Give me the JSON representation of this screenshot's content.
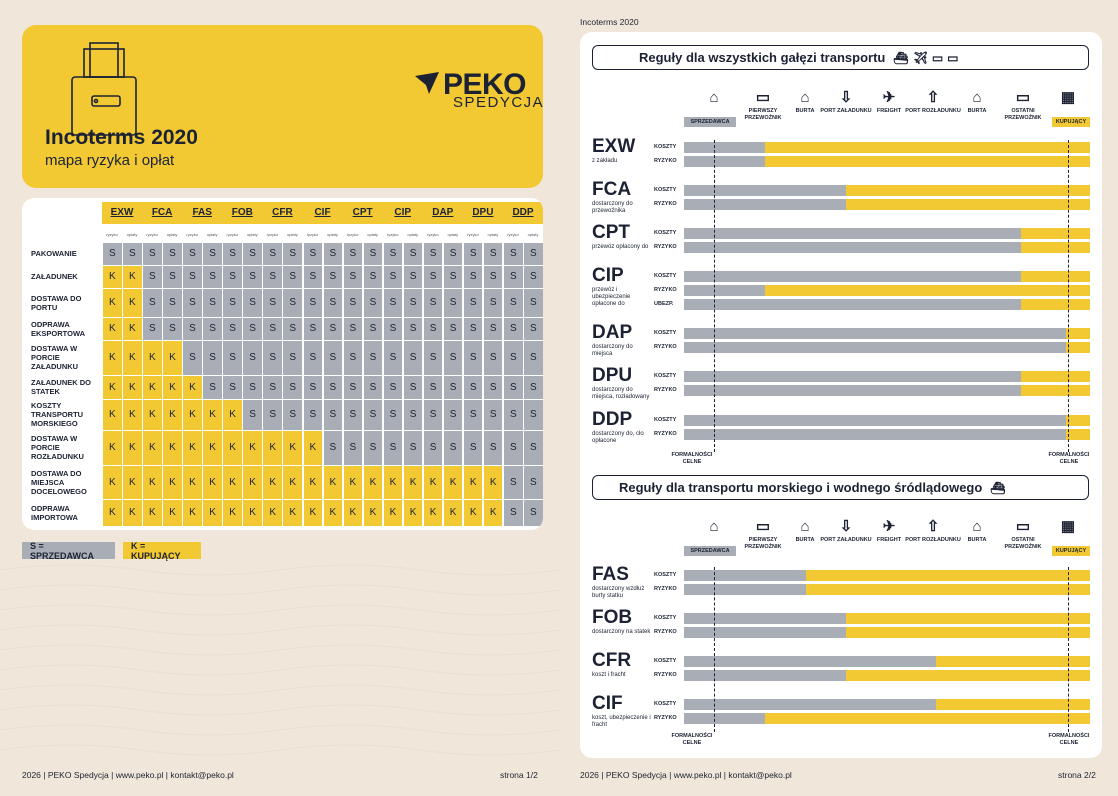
{
  "page1": {
    "title": "Incoterms 2020",
    "subtitle": "mapa ryzyka i opłat",
    "logo_main": "PEKO",
    "logo_sub": "SPEDYCJA",
    "terms": [
      "EXW",
      "FCA",
      "FAS",
      "FOB",
      "CFR",
      "CIF",
      "CPT",
      "CIP",
      "DAP",
      "DPU",
      "DDP"
    ],
    "sublabels": [
      "ryzyko",
      "opłaty"
    ],
    "rows": [
      {
        "label": "PAKOWANIE",
        "cells": "SSSSSSSSSSSSSSSSSSSSSS"
      },
      {
        "label": "ZAŁADUNEK",
        "cells": "KKSSSSSSSSSSSSSSSSSSSS"
      },
      {
        "label": "DOSTAWA DO PORTU",
        "cells": "KKSSSSSSSSSSSSSSSSSSSS"
      },
      {
        "label": "ODPRAWA EKSPORTOWA",
        "cells": "KKSSSSSSSSSSSSSSSSSSSS"
      },
      {
        "label": "DOSTAWA W PORCIE ZAŁADUNKU",
        "cells": "KKKKSSSSSSSSSSSSSSSSSS"
      },
      {
        "label": "ZAŁADUNEK DO STATEK",
        "cells": "KKKKKSSSSSSSSSSSSSSSSS"
      },
      {
        "label": "KOSZTY TRANSPORTU MORSKIEGO",
        "cells": "KKKKKKKSSSSSSSSSSSSSSS"
      },
      {
        "label": "DOSTAWA W PORCIE ROZŁADUNKU",
        "cells": "KKKKKKKKKKKSSSSSSSSSSS"
      },
      {
        "label": "DOSTAWA DO MIEJSCA DOCELOWEGO",
        "cells": "KKKKKKKKKKKKKKKKKKKKSS"
      },
      {
        "label": "ODPRAWA IMPORTOWA",
        "cells": "KKKKKKKKKKKKKKKKKKKKSS"
      }
    ],
    "legend_s": "S = SPRZEDAWCA",
    "legend_k": "K = KUPUJĄCY",
    "footer": "2026 | PEKO Spedycja | www.peko.pl | kontakt@peko.pl",
    "page": "strona 1/2"
  },
  "page2": {
    "top_label": "Incoterms 2020",
    "section1": "Reguły dla wszystkich gałęzi transportu",
    "section2": "Reguły dla transportu morskiego i wodnego śródlądowego",
    "seller_tag": "SPRZEDAWCA",
    "buyer_tag": "KUPUJĄCY",
    "stages": [
      {
        "label": "",
        "icon": "factory-icon"
      },
      {
        "label": "PIERWSZY PRZEWOŹNIK",
        "icon": "truck-icon"
      },
      {
        "label": "BURTA",
        "icon": "warehouse-icon"
      },
      {
        "label": "PORT ZAŁADUNKU",
        "icon": "loading-icon"
      },
      {
        "label": "FREIGHT",
        "icon": "plane-icon"
      },
      {
        "label": "PORT ROZŁADUNKU",
        "icon": "unloading-icon"
      },
      {
        "label": "BURTA",
        "icon": "warehouse-icon"
      },
      {
        "label": "OSTATNI PRZEWOŹNIK",
        "icon": "truck-icon"
      },
      {
        "label": "",
        "icon": "building-icon"
      }
    ],
    "kosz": "KOSZTY",
    "ryz": "RYZYKO",
    "ubez": "UBEZP.",
    "formal": "FORMALNOŚCI CELNE",
    "terms1": [
      {
        "code": "EXW",
        "desc": "z zakładu",
        "koszty": 0.2,
        "ryzyko": 0.2
      },
      {
        "code": "FCA",
        "desc": "dostarczony do przewoźnika",
        "koszty": 0.4,
        "ryzyko": 0.4
      },
      {
        "code": "CPT",
        "desc": "przewóz opłacony do",
        "koszty": 0.83,
        "ryzyko": 0.83
      },
      {
        "code": "CIP",
        "desc": "przewóz i ubezpieczenie opłacone do",
        "koszty": 0.83,
        "ryzyko": 0.2,
        "ubezp": 0.83
      },
      {
        "code": "DAP",
        "desc": "dostarczony do miejsca",
        "koszty": 0.94,
        "ryzyko": 0.94
      },
      {
        "code": "DPU",
        "desc": "dostarczony do miejsca, rozładowany",
        "koszty": 0.83,
        "ryzyko": 0.83
      },
      {
        "code": "DDP",
        "desc": "dostarczony do, cło opłacone",
        "koszty": 0.94,
        "ryzyko": 0.94
      }
    ],
    "terms2": [
      {
        "code": "FAS",
        "desc": "dostarczony wzdłuż burty statku",
        "koszty": 0.3,
        "ryzyko": 0.3
      },
      {
        "code": "FOB",
        "desc": "dostarczony na statek",
        "koszty": 0.4,
        "ryzyko": 0.4
      },
      {
        "code": "CFR",
        "desc": "koszt i fracht",
        "koszty": 0.62,
        "ryzyko": 0.4
      },
      {
        "code": "CIF",
        "desc": "koszt, ubezpieczenie i fracht",
        "koszty": 0.62,
        "ryzyko": 0.2
      }
    ],
    "footer": "2026 | PEKO Spedycja | www.peko.pl | kontakt@peko.pl",
    "page": "strona 2/2"
  },
  "colors": {
    "seller": "#a8adb6",
    "buyer": "#f2c933",
    "ink": "#1c2233",
    "bg": "#f0e7da"
  }
}
